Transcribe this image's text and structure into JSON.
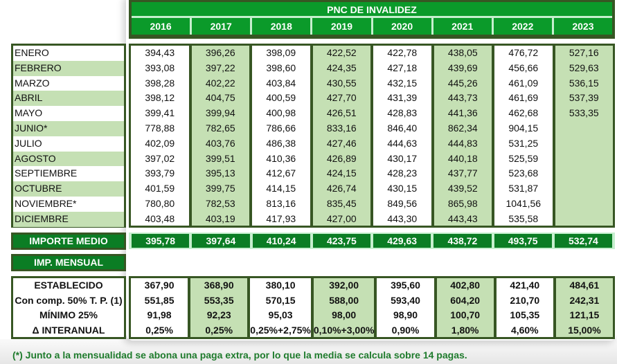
{
  "title": "PNC DE INVALIDEZ",
  "years": [
    "2016",
    "2017",
    "2018",
    "2019",
    "2020",
    "2021",
    "2022",
    "2023"
  ],
  "months": [
    "ENERO",
    "FEBRERO",
    "MARZO",
    "ABRIL",
    "MAYO",
    "JUNIO*",
    "JULIO",
    "AGOSTO",
    "SEPTIEMBRE",
    "OCTUBRE",
    "NOVIEMBRE*",
    "DICIEMBRE"
  ],
  "values": [
    [
      "394,43",
      "396,26",
      "398,09",
      "422,52",
      "422,78",
      "438,05",
      "476,72",
      "527,16"
    ],
    [
      "393,08",
      "397,22",
      "398,60",
      "424,35",
      "427,18",
      "439,69",
      "456,66",
      "529,63"
    ],
    [
      "398,28",
      "402,22",
      "403,84",
      "430,55",
      "432,15",
      "445,26",
      "461,09",
      "536,15"
    ],
    [
      "398,12",
      "404,75",
      "400,59",
      "427,70",
      "431,39",
      "443,73",
      "461,69",
      "537,39"
    ],
    [
      "399,41",
      "399,94",
      "400,98",
      "426,51",
      "428,83",
      "441,36",
      "462,68",
      "533,35"
    ],
    [
      "778,88",
      "782,65",
      "786,66",
      "833,16",
      "846,40",
      "862,34",
      "904,15",
      ""
    ],
    [
      "402,09",
      "403,76",
      "486,38",
      "427,46",
      "444,63",
      "444,83",
      "531,25",
      ""
    ],
    [
      "397,02",
      "399,51",
      "410,36",
      "426,89",
      "430,17",
      "440,18",
      "525,59",
      ""
    ],
    [
      "393,79",
      "395,13",
      "412,67",
      "424,15",
      "428,23",
      "437,77",
      "523,68",
      ""
    ],
    [
      "401,59",
      "399,75",
      "414,15",
      "426,74",
      "430,15",
      "439,52",
      "531,87",
      ""
    ],
    [
      "780,80",
      "782,53",
      "813,16",
      "835,45",
      "849,56",
      "865,98",
      "1041,56",
      ""
    ],
    [
      "403,48",
      "403,19",
      "417,93",
      "427,00",
      "443,30",
      "443,43",
      "535,58",
      ""
    ]
  ],
  "importe_medio": {
    "label": "IMPORTE MEDIO",
    "values": [
      "395,78",
      "397,64",
      "410,24",
      "423,75",
      "429,63",
      "438,72",
      "493,75",
      "532,74"
    ]
  },
  "imp_mensual": {
    "label": "IMP. MENSUAL"
  },
  "mensual_labels": [
    "ESTABLECIDO",
    "Con comp. 50% T. P. (1)",
    "MÍNIMO 25%",
    "Δ INTERANUAL"
  ],
  "mensual_values": [
    [
      "367,90",
      "368,90",
      "380,10",
      "392,00",
      "395,60",
      "402,80",
      "421,40",
      "484,61"
    ],
    [
      "551,85",
      "553,35",
      "570,15",
      "588,00",
      "593,40",
      "604,20",
      "210,70",
      "242,31"
    ],
    [
      "91,98",
      "92,23",
      "95,03",
      "98,00",
      "98,90",
      "100,70",
      "105,35",
      "121,15"
    ],
    [
      "0,25%",
      "0,25%",
      "0,25%+2,75%",
      "0,10%+3,00%",
      "0,90%",
      "1,80%",
      "4,60%",
      "15,00%"
    ]
  ],
  "footnote": "(*) Junto a la mensualidad se abona una paga extra, por lo que la media se calcula sobre 14 pagas.",
  "colors": {
    "header_green": "#0b9a2a",
    "dark_green": "#375623",
    "light_green": "#c5e0b4",
    "footnote_green": "#1e7b2c"
  }
}
